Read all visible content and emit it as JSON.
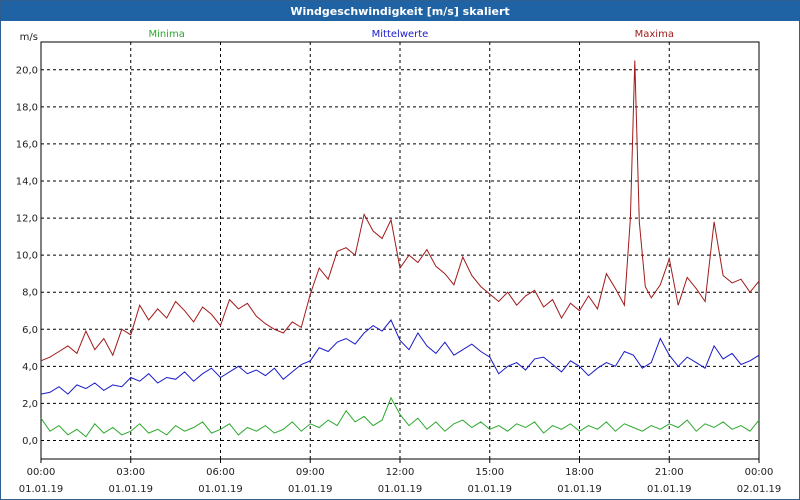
{
  "window": {
    "title": "Windgeschwindigkeit [m/s] skaliert"
  },
  "colors": {
    "minima": "#2ea82e",
    "mittelwerte": "#1a1ac8",
    "maxima": "#a11a1a",
    "grid": "#000000"
  },
  "chart_data": {
    "type": "line",
    "title": "Windgeschwindigkeit [m/s] skaliert",
    "ylabel": "m/s",
    "xlabel": "",
    "ylim": [
      -1,
      21.5
    ],
    "xlim": [
      0,
      24
    ],
    "yticks": [
      0,
      2,
      4,
      6,
      8,
      10,
      12,
      14,
      16,
      18,
      20
    ],
    "ytick_labels": [
      "0,0",
      "2,0",
      "4,0",
      "6,0",
      "8,0",
      "10,0",
      "12,0",
      "14,0",
      "16,0",
      "18,0",
      "20,0"
    ],
    "xticks": [
      0,
      3,
      6,
      9,
      12,
      15,
      18,
      21,
      24
    ],
    "xtick_labels": [
      [
        "00:00",
        "01.01.19"
      ],
      [
        "03:00",
        "01.01.19"
      ],
      [
        "06:00",
        "01.01.19"
      ],
      [
        "09:00",
        "01.01.19"
      ],
      [
        "12:00",
        "01.01.19"
      ],
      [
        "15:00",
        "01.01.19"
      ],
      [
        "18:00",
        "01.01.19"
      ],
      [
        "21:00",
        "01.01.19"
      ],
      [
        "00:00",
        "02.01.19"
      ]
    ],
    "series": [
      {
        "name": "Minima",
        "color": "#2ea82e",
        "x": [
          0,
          0.3,
          0.6,
          0.9,
          1.2,
          1.5,
          1.8,
          2.1,
          2.4,
          2.7,
          3.0,
          3.3,
          3.6,
          3.9,
          4.2,
          4.5,
          4.8,
          5.1,
          5.4,
          5.7,
          6.0,
          6.3,
          6.6,
          6.9,
          7.2,
          7.5,
          7.8,
          8.1,
          8.4,
          8.7,
          9.0,
          9.3,
          9.6,
          9.9,
          10.2,
          10.5,
          10.8,
          11.1,
          11.4,
          11.7,
          12.0,
          12.3,
          12.6,
          12.9,
          13.2,
          13.5,
          13.8,
          14.1,
          14.4,
          14.7,
          15.0,
          15.3,
          15.6,
          15.9,
          16.2,
          16.5,
          16.8,
          17.1,
          17.4,
          17.7,
          18.0,
          18.3,
          18.6,
          18.9,
          19.2,
          19.5,
          19.8,
          20.1,
          20.4,
          20.7,
          21.0,
          21.3,
          21.6,
          21.9,
          22.2,
          22.5,
          22.8,
          23.1,
          23.4,
          23.7,
          24.0
        ],
        "values": [
          1.2,
          0.5,
          0.8,
          0.3,
          0.6,
          0.2,
          0.9,
          0.4,
          0.7,
          0.3,
          0.5,
          0.9,
          0.4,
          0.6,
          0.3,
          0.8,
          0.5,
          0.7,
          1.0,
          0.4,
          0.6,
          0.9,
          0.3,
          0.7,
          0.5,
          0.8,
          0.4,
          0.6,
          1.0,
          0.5,
          0.9,
          0.7,
          1.1,
          0.8,
          1.6,
          1.0,
          1.3,
          0.8,
          1.1,
          2.3,
          1.4,
          0.8,
          1.2,
          0.6,
          1.0,
          0.5,
          0.9,
          1.1,
          0.7,
          1.0,
          0.6,
          0.8,
          0.5,
          0.9,
          0.7,
          1.0,
          0.4,
          0.8,
          0.6,
          0.9,
          0.5,
          0.8,
          0.6,
          1.0,
          0.5,
          0.9,
          0.7,
          0.5,
          0.8,
          0.6,
          0.9,
          0.7,
          1.1,
          0.5,
          0.9,
          0.7,
          1.0,
          0.6,
          0.8,
          0.5,
          1.1
        ]
      },
      {
        "name": "Mittelwerte",
        "color": "#1a1ac8",
        "x": [
          0,
          0.3,
          0.6,
          0.9,
          1.2,
          1.5,
          1.8,
          2.1,
          2.4,
          2.7,
          3.0,
          3.3,
          3.6,
          3.9,
          4.2,
          4.5,
          4.8,
          5.1,
          5.4,
          5.7,
          6.0,
          6.3,
          6.6,
          6.9,
          7.2,
          7.5,
          7.8,
          8.1,
          8.4,
          8.7,
          9.0,
          9.3,
          9.6,
          9.9,
          10.2,
          10.5,
          10.8,
          11.1,
          11.4,
          11.7,
          12.0,
          12.3,
          12.6,
          12.9,
          13.2,
          13.5,
          13.8,
          14.1,
          14.4,
          14.7,
          15.0,
          15.3,
          15.6,
          15.9,
          16.2,
          16.5,
          16.8,
          17.1,
          17.4,
          17.7,
          18.0,
          18.3,
          18.6,
          18.9,
          19.2,
          19.5,
          19.8,
          20.1,
          20.4,
          20.7,
          21.0,
          21.3,
          21.6,
          21.9,
          22.2,
          22.5,
          22.8,
          23.1,
          23.4,
          23.7,
          24.0
        ],
        "values": [
          2.5,
          2.6,
          2.9,
          2.5,
          3.0,
          2.8,
          3.1,
          2.7,
          3.0,
          2.9,
          3.4,
          3.2,
          3.6,
          3.1,
          3.4,
          3.3,
          3.7,
          3.2,
          3.6,
          3.9,
          3.4,
          3.7,
          4.0,
          3.6,
          3.8,
          3.5,
          3.9,
          3.3,
          3.7,
          4.1,
          4.3,
          5.0,
          4.8,
          5.3,
          5.5,
          5.2,
          5.8,
          6.2,
          5.9,
          6.5,
          5.4,
          4.9,
          5.8,
          5.1,
          4.7,
          5.3,
          4.6,
          4.9,
          5.2,
          4.8,
          4.5,
          3.6,
          4.0,
          4.2,
          3.8,
          4.4,
          4.5,
          4.1,
          3.7,
          4.3,
          4.0,
          3.5,
          3.9,
          4.2,
          4.0,
          4.8,
          4.6,
          3.9,
          4.2,
          5.5,
          4.6,
          4.0,
          4.5,
          4.2,
          3.9,
          5.1,
          4.4,
          4.7,
          4.1,
          4.3,
          4.6
        ]
      },
      {
        "name": "Maxima",
        "color": "#a11a1a",
        "x": [
          0,
          0.3,
          0.6,
          0.9,
          1.2,
          1.5,
          1.8,
          2.1,
          2.4,
          2.7,
          3.0,
          3.3,
          3.6,
          3.9,
          4.2,
          4.5,
          4.8,
          5.1,
          5.4,
          5.7,
          6.0,
          6.3,
          6.6,
          6.9,
          7.2,
          7.5,
          7.8,
          8.1,
          8.4,
          8.7,
          9.0,
          9.3,
          9.6,
          9.9,
          10.2,
          10.5,
          10.8,
          11.1,
          11.4,
          11.7,
          12.0,
          12.3,
          12.6,
          12.9,
          13.2,
          13.5,
          13.8,
          14.1,
          14.4,
          14.7,
          15.0,
          15.3,
          15.6,
          15.9,
          16.2,
          16.5,
          16.8,
          17.1,
          17.4,
          17.7,
          18.0,
          18.3,
          18.6,
          18.9,
          19.2,
          19.5,
          19.7,
          19.85,
          20.0,
          20.2,
          20.4,
          20.7,
          21.0,
          21.3,
          21.6,
          21.9,
          22.2,
          22.5,
          22.8,
          23.1,
          23.4,
          23.7,
          24.0
        ],
        "values": [
          4.3,
          4.5,
          4.8,
          5.1,
          4.7,
          5.9,
          4.9,
          5.5,
          4.6,
          6.0,
          5.7,
          7.3,
          6.5,
          7.1,
          6.6,
          7.5,
          7.0,
          6.4,
          7.2,
          6.8,
          6.2,
          7.6,
          7.1,
          7.4,
          6.7,
          6.3,
          6.0,
          5.8,
          6.4,
          6.1,
          7.9,
          9.3,
          8.7,
          10.2,
          10.4,
          10.0,
          12.2,
          11.3,
          10.9,
          11.9,
          9.3,
          10.0,
          9.6,
          10.3,
          9.4,
          9.0,
          8.4,
          9.9,
          8.9,
          8.3,
          7.9,
          7.5,
          8.0,
          7.3,
          7.8,
          8.1,
          7.2,
          7.6,
          6.6,
          7.4,
          7.0,
          7.8,
          7.1,
          9.0,
          8.2,
          7.3,
          12.0,
          20.5,
          11.8,
          8.3,
          7.7,
          8.4,
          9.8,
          7.3,
          8.8,
          8.2,
          7.5,
          11.8,
          8.9,
          8.5,
          8.7,
          8.0,
          8.6
        ]
      }
    ],
    "legend": [
      "Minima",
      "Mittelwerte",
      "Maxima"
    ],
    "grid": true
  }
}
